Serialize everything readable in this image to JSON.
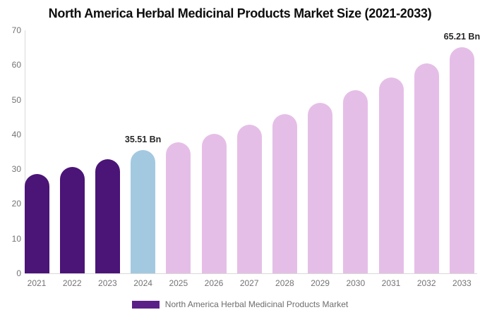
{
  "title": "North America Herbal Medicinal Products Market Size (2021-2033)",
  "legend": {
    "label": "North America Herbal Medicinal Products Market"
  },
  "colors": {
    "historical": "#4B1477",
    "current": "#A3C9E0",
    "forecast": "#E5BEE7",
    "legend_swatch": "#5A2088",
    "axis_line": "#D9D9D9",
    "axis_text": "#737373",
    "annotation_text": "#262626",
    "title_text": "#0D0D0D",
    "legend_text": "#6D6D6D",
    "background": "#FFFFFF"
  },
  "chart_data": {
    "type": "bar",
    "title": "North America Herbal Medicinal Products Market Size (2021-2033)",
    "xlabel": "",
    "ylabel": "",
    "unit": "Bn",
    "categories": [
      "2021",
      "2022",
      "2023",
      "2024",
      "2025",
      "2026",
      "2027",
      "2028",
      "2029",
      "2030",
      "2031",
      "2032",
      "2033"
    ],
    "values": [
      28.6,
      30.7,
      32.9,
      35.51,
      37.8,
      40.2,
      42.9,
      45.9,
      49.2,
      52.7,
      56.4,
      60.5,
      65.21
    ],
    "bar_segments": [
      "historical",
      "historical",
      "historical",
      "current",
      "forecast",
      "forecast",
      "forecast",
      "forecast",
      "forecast",
      "forecast",
      "forecast",
      "forecast",
      "forecast"
    ],
    "annotations": [
      {
        "category": "2024",
        "text": "35.51 Bn"
      },
      {
        "category": "2033",
        "text": "65.21 Bn"
      }
    ],
    "ylim": [
      0,
      70
    ],
    "yticks": [
      0,
      10,
      20,
      30,
      40,
      50,
      60,
      70
    ],
    "grid": false,
    "legend_position": "bottom",
    "legend_entries": [
      "North America Herbal Medicinal Products Market"
    ],
    "bar_corner": "rounded-top"
  }
}
